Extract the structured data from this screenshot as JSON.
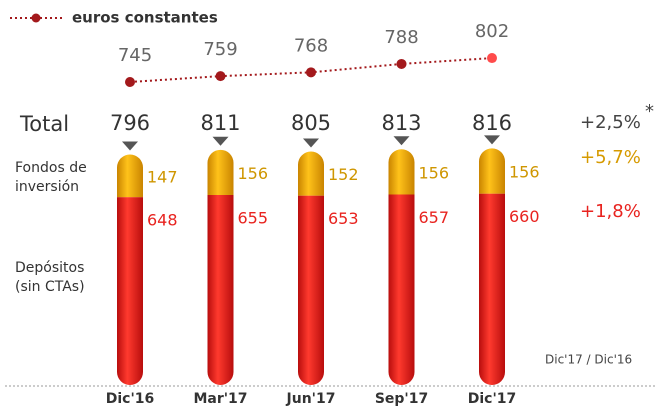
{
  "chart_data": {
    "type": "bar",
    "stacked": true,
    "categories": [
      "Dic'16",
      "Mar'17",
      "Jun'17",
      "Sep'17",
      "Dic'17"
    ],
    "series": [
      {
        "name": "Depósitos (sin CTAs)",
        "type": "bar",
        "color": "#e8231f",
        "label_color": "#e8231f",
        "values": [
          648,
          655,
          653,
          657,
          660
        ]
      },
      {
        "name": "Fondos de inversión",
        "type": "bar",
        "color": "#eaa400",
        "label_color": "#cf9600",
        "values": [
          147,
          156,
          152,
          156,
          156
        ]
      },
      {
        "name": "euros constantes",
        "type": "line",
        "color": "#a3191c",
        "last_point_color": "#ff4b4b",
        "values": [
          745,
          759,
          768,
          788,
          802
        ]
      }
    ],
    "total_label": "Total",
    "totals": [
      796,
      811,
      805,
      813,
      816
    ],
    "growth": {
      "total": "+2,5%",
      "note_mark": "*",
      "fondos": "+5,7%",
      "depositos": "+1,8%",
      "period": "Dic'17 / Dic'16"
    }
  }
}
